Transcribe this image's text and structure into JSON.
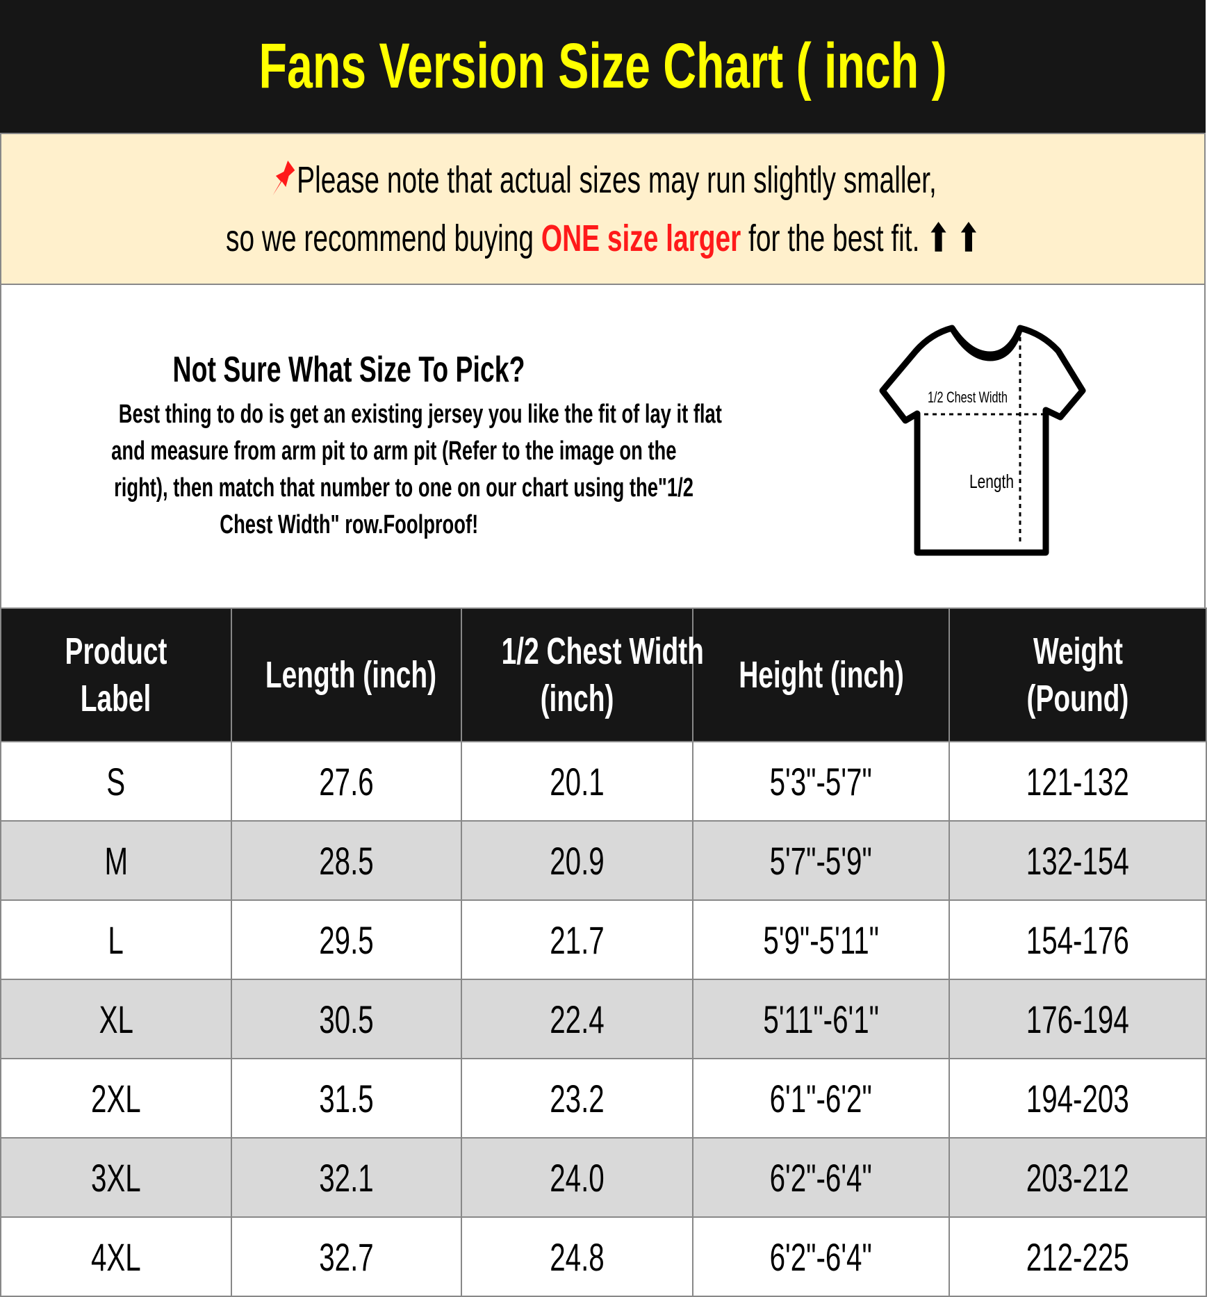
{
  "title": "Fans Version Size Chart ( inch )",
  "note": {
    "line1": "Please note that actual sizes may run slightly smaller,",
    "line2_pre": "so we recommend buying ",
    "line2_em": "ONE size larger",
    "line2_post": " for the best fit.",
    "arrows": "⬆ ⬆",
    "icon": "pushpin-icon"
  },
  "info": {
    "title": "Not Sure What Size To Pick?",
    "lines": [
      "Best thing to do is get an existing jersey you like the fit of lay it flat",
      "and measure from arm pit to arm pit (Refer to the image on the",
      "right), then match that number to one on our chart using the\"1/2",
      "Chest Width\" row.Foolproof!"
    ],
    "diagram": {
      "chest_label": "1/2 Chest Width",
      "length_label": "Length"
    }
  },
  "table": {
    "headers": [
      [
        "Product",
        "Label"
      ],
      [
        "Length (inch)"
      ],
      [
        "1/2 Chest Width",
        "(inch)"
      ],
      [
        "Height (inch)"
      ],
      [
        "Weight",
        "(Pound)"
      ]
    ],
    "rows": [
      [
        "S",
        "27.6",
        "20.1",
        "5'3\"-5'7\"",
        "121-132"
      ],
      [
        "M",
        "28.5",
        "20.9",
        "5'7\"-5'9\"",
        "132-154"
      ],
      [
        "L",
        "29.5",
        "21.7",
        "5'9\"-5'11\"",
        "154-176"
      ],
      [
        "XL",
        "30.5",
        "22.4",
        "5'11\"-6'1\"",
        "176-194"
      ],
      [
        "2XL",
        "31.5",
        "23.2",
        "6'1\"-6'2\"",
        "194-203"
      ],
      [
        "3XL",
        "32.1",
        "24.0",
        "6'2\"-6'4\"",
        "203-212"
      ],
      [
        "4XL",
        "32.7",
        "24.8",
        "6'2\"-6'4\"",
        "212-225"
      ]
    ]
  },
  "colors": {
    "title": "#ffff00",
    "header_bg": "#161616",
    "note_bg": "#fff0cc",
    "accent": "#ff1a1a",
    "alt_row": "#d9d9d9"
  }
}
